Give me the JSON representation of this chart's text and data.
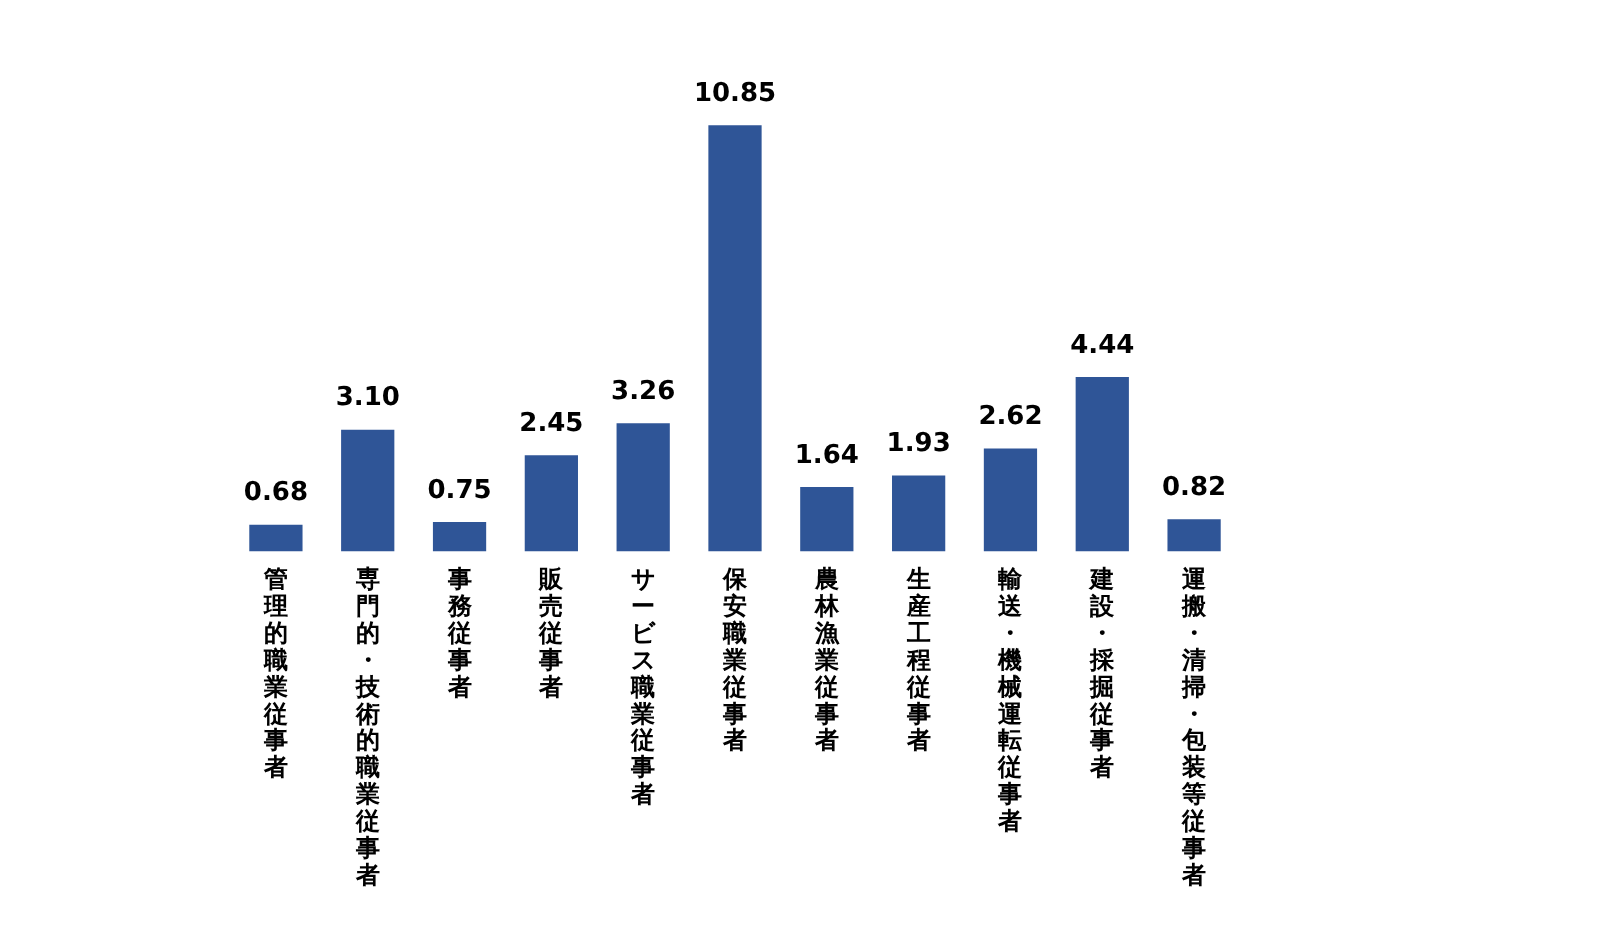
{
  "chart_data": {
    "type": "bar",
    "categories": [
      "管理的職業従事者",
      "専門的・技術的職業従事者",
      "事務従事者",
      "販売従事者",
      "サービス職業従事者",
      "保安職業従事者",
      "農林漁業従事者",
      "生産工程従事者",
      "輸送・機械運転従事者",
      "建設・採掘従事者",
      "運搬・清掃・包装等従事者"
    ],
    "values": [
      0.68,
      3.1,
      0.75,
      2.45,
      3.26,
      10.85,
      1.64,
      1.93,
      2.62,
      4.44,
      0.82
    ],
    "value_labels": [
      "0.68",
      "3.10",
      "0.75",
      "2.45",
      "3.26",
      "10.85",
      "1.64",
      "1.93",
      "2.62",
      "4.44",
      "0.82"
    ],
    "color": "#2f5597",
    "grid": false,
    "legend": false
  }
}
